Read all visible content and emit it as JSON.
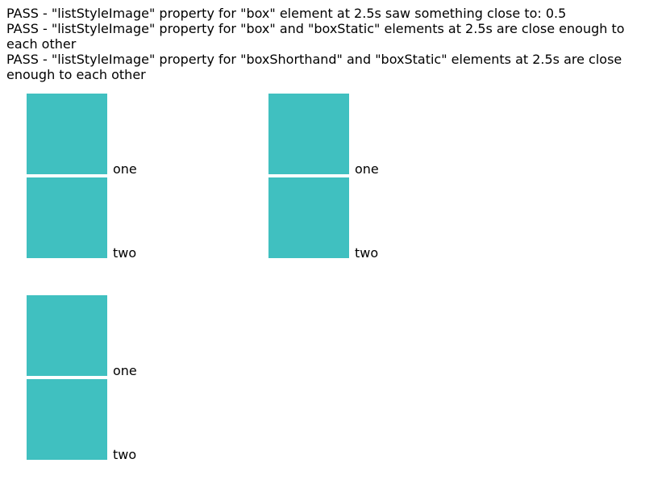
{
  "results": [
    "PASS - \"listStyleImage\" property for \"box\" element at 2.5s saw something close to: 0.5",
    "PASS - \"listStyleImage\" property for \"box\" and \"boxStatic\" elements at 2.5s are close enough to each other",
    "PASS - \"listStyleImage\" property for \"boxShorthand\" and \"boxStatic\" elements at 2.5s are close enough to each other"
  ],
  "lists": {
    "box": {
      "items": [
        "one",
        "two"
      ]
    },
    "boxStatic": {
      "items": [
        "one",
        "two"
      ]
    },
    "boxShorthand": {
      "items": [
        "one",
        "two"
      ]
    }
  },
  "colors": {
    "marker": "#40c0c0",
    "background": "#ffffff",
    "text": "#000000"
  }
}
